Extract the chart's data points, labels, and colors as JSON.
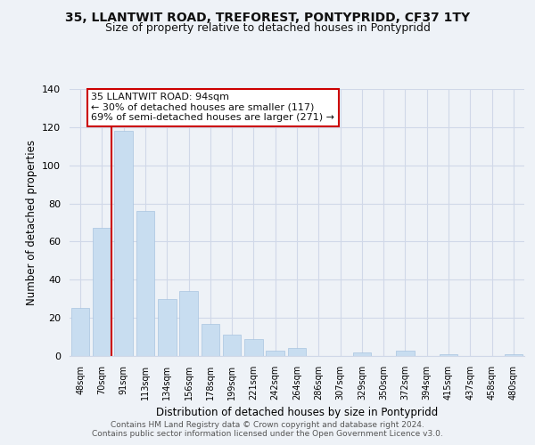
{
  "title": "35, LLANTWIT ROAD, TREFOREST, PONTYPRIDD, CF37 1TY",
  "subtitle": "Size of property relative to detached houses in Pontypridd",
  "xlabel": "Distribution of detached houses by size in Pontypridd",
  "ylabel": "Number of detached properties",
  "bar_labels": [
    "48sqm",
    "70sqm",
    "91sqm",
    "113sqm",
    "134sqm",
    "156sqm",
    "178sqm",
    "199sqm",
    "221sqm",
    "242sqm",
    "264sqm",
    "286sqm",
    "307sqm",
    "329sqm",
    "350sqm",
    "372sqm",
    "394sqm",
    "415sqm",
    "437sqm",
    "458sqm",
    "480sqm"
  ],
  "bar_values": [
    25,
    67,
    118,
    76,
    30,
    34,
    17,
    11,
    9,
    3,
    4,
    0,
    0,
    2,
    0,
    3,
    0,
    1,
    0,
    0,
    1
  ],
  "bar_color": "#c8ddf0",
  "bar_edge_color": "#a8c4e0",
  "highlight_line_color": "#cc0000",
  "ylim": [
    0,
    140
  ],
  "yticks": [
    0,
    20,
    40,
    60,
    80,
    100,
    120,
    140
  ],
  "annotation_line1": "35 LLANTWIT ROAD: 94sqm",
  "annotation_line2": "← 30% of detached houses are smaller (117)",
  "annotation_line3": "69% of semi-detached houses are larger (271) →",
  "annotation_box_color": "#ffffff",
  "annotation_box_edge": "#cc0000",
  "footer_text": "Contains HM Land Registry data © Crown copyright and database right 2024.\nContains public sector information licensed under the Open Government Licence v3.0.",
  "background_color": "#eef2f7",
  "grid_color": "#d0d8e8",
  "title_fontsize": 10,
  "subtitle_fontsize": 9
}
